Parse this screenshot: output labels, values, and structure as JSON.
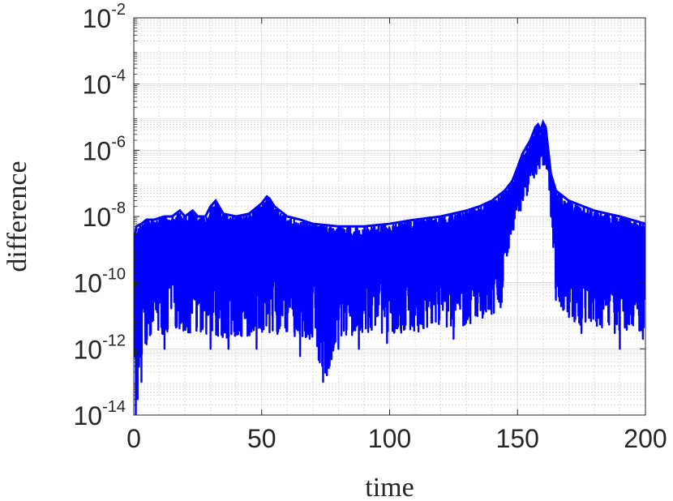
{
  "chart_data": {
    "type": "line",
    "title": "",
    "xlabel": "time",
    "ylabel": "difference",
    "xlim": [
      0,
      200
    ],
    "ylim": [
      1e-14,
      0.01
    ],
    "yscale": "log",
    "grid": true,
    "minor_grid": true,
    "x_ticks": [
      {
        "value": 0,
        "label": "0"
      },
      {
        "value": 50,
        "label": "50"
      },
      {
        "value": 100,
        "label": "100"
      },
      {
        "value": 150,
        "label": "150"
      },
      {
        "value": 200,
        "label": "200"
      }
    ],
    "y_ticks": [
      {
        "value": 1e-14,
        "base": "10",
        "exp": "-14"
      },
      {
        "value": 1e-12,
        "base": "10",
        "exp": "-12"
      },
      {
        "value": 1e-10,
        "base": "10",
        "exp": "-10"
      },
      {
        "value": 1e-08,
        "base": "10",
        "exp": "-8"
      },
      {
        "value": 1e-06,
        "base": "10",
        "exp": "-6"
      },
      {
        "value": 0.0001,
        "base": "10",
        "exp": "-4"
      },
      {
        "value": 0.01,
        "base": "10",
        "exp": "-2"
      }
    ],
    "series": [
      {
        "color": "#0000ff",
        "upper_envelope": {
          "x": [
            0.3,
            1,
            3,
            5,
            8,
            12,
            15,
            18,
            20,
            23,
            25,
            28,
            30,
            32,
            35,
            40,
            45,
            50,
            52,
            53,
            55,
            60,
            65,
            70,
            80,
            90,
            100,
            110,
            120,
            130,
            135,
            140,
            145,
            148,
            150,
            152,
            155,
            157,
            158,
            159,
            160,
            161,
            162,
            163,
            165,
            170,
            180,
            190,
            200
          ],
          "y": [
            2e-09,
            5e-09,
            6e-09,
            8e-09,
            8e-09,
            1e-08,
            1e-08,
            1.5e-08,
            1e-08,
            1.5e-08,
            1e-08,
            1e-08,
            2e-08,
            3e-08,
            1.2e-08,
            1e-08,
            1.2e-08,
            2.5e-08,
            4e-08,
            3.5e-08,
            2e-08,
            1e-08,
            8e-09,
            6e-09,
            5e-09,
            5e-09,
            6e-09,
            8e-09,
            1e-08,
            1.5e-08,
            2e-08,
            3e-08,
            6e-08,
            1.2e-07,
            3e-07,
            8e-07,
            2e-06,
            5e-06,
            6e-06,
            4e-06,
            7e-06,
            5e-06,
            1e-06,
            2e-07,
            6e-08,
            3e-08,
            1.5e-08,
            1e-08,
            6e-09
          ]
        },
        "lower_envelope": {
          "x": [
            0.3,
            1,
            3,
            5,
            8,
            12,
            15,
            18,
            20,
            25,
            30,
            35,
            40,
            45,
            50,
            55,
            60,
            65,
            70,
            75,
            80,
            90,
            100,
            110,
            120,
            130,
            135,
            140,
            143,
            145,
            148,
            150,
            152,
            155,
            158,
            160,
            162,
            165,
            170,
            175,
            180,
            190,
            200
          ],
          "y": [
            2e-14,
            1e-13,
            5e-13,
            1e-12,
            2e-12,
            3e-12,
            4e-12,
            4e-12,
            3e-12,
            3e-12,
            2.5e-12,
            2e-12,
            2e-12,
            2.5e-12,
            3e-12,
            2.5e-12,
            2.5e-12,
            2e-12,
            1.5e-12,
            1e-13,
            2e-12,
            3e-12,
            3e-12,
            3e-12,
            4e-12,
            5e-12,
            8e-12,
            1e-11,
            5e-12,
            2e-10,
            3e-09,
            8e-09,
            2e-08,
            6e-08,
            2e-07,
            3e-07,
            2e-07,
            3e-11,
            8e-12,
            5e-12,
            5e-12,
            3e-12,
            3e-12
          ]
        },
        "typical": {
          "x": [
            0.3,
            5,
            20,
            50,
            80,
            100,
            120,
            140,
            145,
            150,
            155,
            160,
            163,
            165,
            170,
            180,
            200
          ],
          "y": [
            3e-10,
            5e-10,
            8e-10,
            1e-09,
            1e-09,
            1.2e-09,
            1.5e-09,
            3e-09,
            2e-08,
            2e-07,
            1e-06,
            1e-06,
            5e-08,
            5e-09,
            2e-09,
            1.2e-09,
            1e-09
          ]
        },
        "dips": [
          {
            "x": 0.8,
            "y": 1e-14
          },
          {
            "x": 1.5,
            "y": 3e-14
          },
          {
            "x": 3,
            "y": 1e-13
          },
          {
            "x": 12,
            "y": 1e-12
          },
          {
            "x": 30,
            "y": 1e-12
          },
          {
            "x": 37,
            "y": 1e-12
          },
          {
            "x": 48,
            "y": 1e-12
          },
          {
            "x": 65,
            "y": 6e-13
          },
          {
            "x": 74,
            "y": 1e-13
          },
          {
            "x": 80,
            "y": 1e-12
          },
          {
            "x": 88,
            "y": 1e-12
          },
          {
            "x": 99,
            "y": 1.5e-12
          },
          {
            "x": 124,
            "y": 5e-12
          },
          {
            "x": 125,
            "y": 2e-12
          },
          {
            "x": 143,
            "y": 3e-11
          },
          {
            "x": 165,
            "y": 3e-11
          },
          {
            "x": 175,
            "y": 3e-12
          },
          {
            "x": 188,
            "y": 3e-12
          },
          {
            "x": 190,
            "y": 1e-12
          },
          {
            "x": 199,
            "y": 2e-12
          }
        ]
      }
    ]
  }
}
